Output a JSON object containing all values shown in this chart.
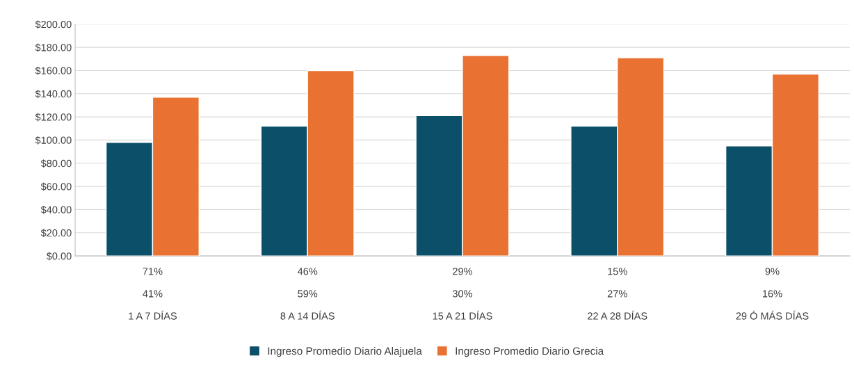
{
  "chart_data": {
    "type": "bar",
    "categories": [
      "71%\n41%\n1 A 7 DÍAS",
      "46%\n59%\n8 A 14 DÍAS",
      "29%\n30%\n15 A 21 DÍAS",
      "15%\n27%\n22 A 28 DÍAS",
      "9%\n16%\n29 Ó MÁS DÍAS"
    ],
    "series": [
      {
        "name": "Ingreso Promedio Diario Alajuela",
        "color": "#0b4f69",
        "values": [
          98,
          112,
          121,
          112,
          95
        ]
      },
      {
        "name": "Ingreso Promedio Diario Grecia",
        "color": "#e97132",
        "values": [
          137,
          160,
          173,
          171,
          157
        ]
      }
    ],
    "ylim": [
      0,
      200
    ],
    "yticks": [
      {
        "value": 0,
        "label": "$0.00"
      },
      {
        "value": 20,
        "label": "$20.00"
      },
      {
        "value": 40,
        "label": "$40.00"
      },
      {
        "value": 60,
        "label": "$60.00"
      },
      {
        "value": 80,
        "label": "$80.00"
      },
      {
        "value": 100,
        "label": "$100.00"
      },
      {
        "value": 120,
        "label": "$120.00"
      },
      {
        "value": 140,
        "label": "$140.00"
      },
      {
        "value": 160,
        "label": "$160.00"
      },
      {
        "value": 180,
        "label": "$180.00"
      },
      {
        "value": 200,
        "label": "$200.00"
      }
    ],
    "grid": "y",
    "legend": "bottom"
  }
}
